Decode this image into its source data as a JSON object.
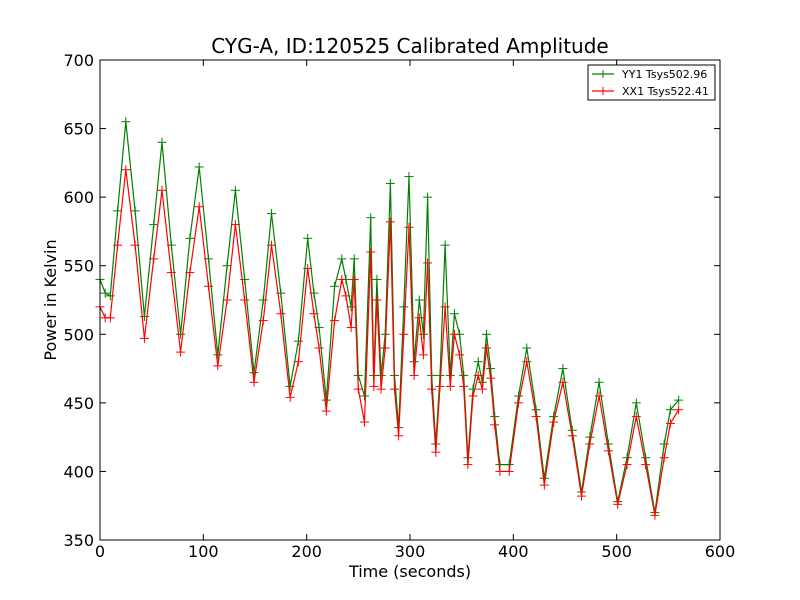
{
  "chart_data": {
    "type": "line",
    "title": "CYG-A, ID:120525 Calibrated Amplitude",
    "xlabel": "Time (seconds)",
    "ylabel": "Power in Kelvin",
    "xlim": [
      0,
      600
    ],
    "ylim": [
      350,
      700
    ],
    "xticks": [
      0,
      100,
      200,
      300,
      400,
      500,
      600
    ],
    "yticks": [
      350,
      400,
      450,
      500,
      550,
      600,
      650,
      700
    ],
    "xtick_labels": [
      "0",
      "100",
      "200",
      "300",
      "400",
      "500",
      "600"
    ],
    "ytick_labels": [
      "350",
      "400",
      "450",
      "500",
      "550",
      "600",
      "650",
      "700"
    ],
    "grid": false,
    "legend": "top-right",
    "marker": "+",
    "series": [
      {
        "name": "YY1 Tsys502.96",
        "color": "#008000",
        "x": [
          0,
          5,
          10,
          17,
          25,
          34,
          43,
          52,
          60,
          69,
          78,
          87,
          96,
          105,
          114,
          123,
          131,
          140,
          149,
          158,
          166,
          175,
          184,
          192,
          201,
          207,
          212,
          219,
          227,
          234,
          238,
          243,
          246,
          250,
          256,
          262,
          265,
          268,
          272,
          276,
          281,
          285,
          289,
          294,
          299,
          304,
          309,
          313,
          317,
          321,
          325,
          329,
          334,
          339,
          343,
          348,
          352,
          356,
          361,
          366,
          370,
          374,
          378,
          382,
          387,
          396,
          405,
          413,
          422,
          430,
          439,
          448,
          457,
          466,
          474,
          483,
          492,
          501,
          510,
          519,
          528,
          537,
          546,
          552,
          560
        ],
        "values": [
          540,
          530,
          528,
          590,
          655,
          590,
          513,
          580,
          640,
          565,
          500,
          570,
          622,
          555,
          485,
          550,
          605,
          540,
          472,
          525,
          588,
          530,
          462,
          495,
          570,
          530,
          505,
          452,
          535,
          555,
          540,
          520,
          555,
          470,
          455,
          585,
          470,
          540,
          470,
          500,
          610,
          470,
          432,
          520,
          615,
          480,
          525,
          500,
          600,
          470,
          420,
          470,
          565,
          470,
          515,
          500,
          470,
          410,
          460,
          480,
          465,
          500,
          475,
          440,
          405,
          405,
          455,
          490,
          445,
          395,
          440,
          475,
          430,
          385,
          425,
          465,
          420,
          378,
          410,
          450,
          410,
          370,
          420,
          445,
          452
        ]
      },
      {
        "name": "XX1 Tsys522.41",
        "color": "#ff0000",
        "x": [
          0,
          5,
          10,
          17,
          25,
          34,
          43,
          52,
          60,
          69,
          78,
          87,
          96,
          105,
          114,
          123,
          131,
          140,
          149,
          158,
          166,
          175,
          184,
          192,
          201,
          207,
          212,
          219,
          227,
          234,
          238,
          243,
          246,
          250,
          256,
          262,
          265,
          268,
          272,
          276,
          281,
          285,
          289,
          294,
          299,
          304,
          309,
          313,
          317,
          321,
          325,
          329,
          334,
          339,
          343,
          348,
          352,
          356,
          361,
          366,
          370,
          374,
          378,
          382,
          387,
          396,
          405,
          413,
          422,
          430,
          439,
          448,
          457,
          466,
          474,
          483,
          492,
          501,
          510,
          519,
          528,
          537,
          546,
          552,
          560
        ],
        "values": [
          520,
          512,
          512,
          565,
          620,
          565,
          497,
          555,
          605,
          545,
          487,
          545,
          593,
          535,
          477,
          525,
          580,
          525,
          465,
          510,
          565,
          515,
          454,
          480,
          548,
          515,
          490,
          444,
          510,
          540,
          528,
          505,
          540,
          460,
          436,
          560,
          462,
          525,
          460,
          490,
          582,
          460,
          426,
          500,
          578,
          470,
          512,
          485,
          552,
          460,
          414,
          462,
          520,
          462,
          500,
          485,
          462,
          405,
          455,
          470,
          460,
          490,
          468,
          434,
          400,
          400,
          450,
          480,
          440,
          390,
          436,
          465,
          426,
          382,
          420,
          455,
          415,
          376,
          405,
          440,
          405,
          368,
          410,
          435,
          445
        ]
      }
    ]
  }
}
